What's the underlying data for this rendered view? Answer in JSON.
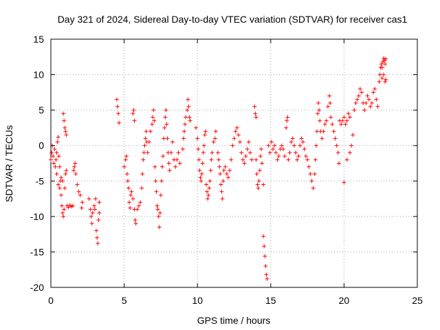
{
  "chart_data": {
    "type": "scatter",
    "title": "Day 321 of 2024, Sidereal Day-to-day VTEC variation (SDTVAR) for receiver cas1",
    "xlabel": "GPS time / hours",
    "ylabel": "SDTVAR / TECUs",
    "xlim": [
      0,
      25
    ],
    "ylim": [
      -20,
      15
    ],
    "xticks": [
      0,
      5,
      10,
      15,
      20,
      25
    ],
    "yticks": [
      -20,
      -15,
      -10,
      -5,
      0,
      5,
      10,
      15
    ],
    "xtick_labels": [
      "0",
      "5",
      "10",
      "15",
      "20",
      "25"
    ],
    "ytick_labels": [
      "-20",
      "-15",
      "-10",
      "-5",
      "0",
      "5",
      "10",
      "15"
    ],
    "grid": true,
    "marker": "+",
    "color": "#ff0000",
    "series": [
      {
        "name": "SDTVAR",
        "points": [
          [
            0.0,
            -2.0
          ],
          [
            0.05,
            -1.0
          ],
          [
            0.1,
            0.0
          ],
          [
            0.15,
            -1.5
          ],
          [
            0.2,
            -2.5
          ],
          [
            0.25,
            -0.5
          ],
          [
            0.3,
            -3.0
          ],
          [
            0.35,
            -2.0
          ],
          [
            0.4,
            -1.0
          ],
          [
            0.45,
            0.5
          ],
          [
            0.5,
            1.2
          ],
          [
            0.55,
            -1.5
          ],
          [
            0.6,
            -3.0
          ],
          [
            0.65,
            -5.0
          ],
          [
            0.7,
            -7.0
          ],
          [
            0.75,
            -8.5
          ],
          [
            0.8,
            -9.5
          ],
          [
            0.85,
            -10.0
          ],
          [
            0.9,
            -9.0
          ],
          [
            0.95,
            -6.0
          ],
          [
            1.0,
            -4.0
          ],
          [
            1.05,
            -3.5
          ],
          [
            0.85,
            4.5
          ],
          [
            0.9,
            3.5
          ],
          [
            0.95,
            2.5
          ],
          [
            1.0,
            2.0
          ],
          [
            1.05,
            1.5
          ],
          [
            0.4,
            -4.0
          ],
          [
            0.5,
            -5.5
          ],
          [
            0.6,
            -6.0
          ],
          [
            0.7,
            -4.5
          ],
          [
            0.8,
            -5.0
          ],
          [
            1.1,
            -8.5
          ],
          [
            1.2,
            -8.7
          ],
          [
            1.3,
            -8.4
          ],
          [
            1.4,
            -8.6
          ],
          [
            1.5,
            -8.5
          ],
          [
            1.55,
            -3.5
          ],
          [
            1.6,
            -3.0
          ],
          [
            1.65,
            -2.5
          ],
          [
            1.7,
            -4.0
          ],
          [
            1.8,
            -5.5
          ],
          [
            1.9,
            -6.5
          ],
          [
            2.0,
            -7.0
          ],
          [
            2.1,
            -8.8
          ],
          [
            2.15,
            -8.0
          ],
          [
            2.6,
            -7.5
          ],
          [
            2.7,
            -9.0
          ],
          [
            2.75,
            -10.0
          ],
          [
            2.8,
            -11.0
          ],
          [
            2.85,
            -9.5
          ],
          [
            2.95,
            -8.5
          ],
          [
            3.0,
            -9.0
          ],
          [
            3.05,
            -7.5
          ],
          [
            3.1,
            -12.0
          ],
          [
            3.15,
            -13.0
          ],
          [
            3.2,
            -13.8
          ],
          [
            3.25,
            -10.5
          ],
          [
            3.3,
            -9.5
          ],
          [
            3.3,
            -8.0
          ],
          [
            4.5,
            6.5
          ],
          [
            4.55,
            5.5
          ],
          [
            4.6,
            4.5
          ],
          [
            4.65,
            3.2
          ],
          [
            5.0,
            -3.0
          ],
          [
            5.1,
            -2.0
          ],
          [
            5.15,
            -1.5
          ],
          [
            5.2,
            -4.0
          ],
          [
            5.25,
            -5.0
          ],
          [
            5.3,
            -6.0
          ],
          [
            5.35,
            -8.0
          ],
          [
            5.4,
            -8.8
          ],
          [
            5.45,
            -7.0
          ],
          [
            5.5,
            -6.5
          ],
          [
            5.6,
            -7.5
          ],
          [
            5.7,
            -9.0
          ],
          [
            5.75,
            -10.5
          ],
          [
            5.8,
            -11.0
          ],
          [
            5.9,
            -9.0
          ],
          [
            6.0,
            -8.5
          ],
          [
            5.6,
            4.5
          ],
          [
            5.65,
            5.0
          ],
          [
            5.7,
            3.5
          ],
          [
            6.1,
            -8.0
          ],
          [
            6.2,
            -6.0
          ],
          [
            6.25,
            -4.0
          ],
          [
            6.3,
            -2.0
          ],
          [
            6.35,
            -1.0
          ],
          [
            6.4,
            0.0
          ],
          [
            6.45,
            1.0
          ],
          [
            6.5,
            2.0
          ],
          [
            6.55,
            0.5
          ],
          [
            6.6,
            -1.0
          ],
          [
            6.7,
            0.5
          ],
          [
            6.8,
            2.0
          ],
          [
            6.9,
            3.0
          ],
          [
            6.95,
            4.0
          ],
          [
            7.0,
            5.0
          ],
          [
            7.05,
            3.5
          ],
          [
            7.1,
            -3.0
          ],
          [
            7.15,
            -5.0
          ],
          [
            7.2,
            -6.5
          ],
          [
            7.25,
            -8.5
          ],
          [
            7.3,
            -9.0
          ],
          [
            7.35,
            -10.0
          ],
          [
            7.4,
            -11.5
          ],
          [
            7.45,
            -9.5
          ],
          [
            7.5,
            -7.0
          ],
          [
            7.55,
            -5.0
          ],
          [
            7.6,
            -3.0
          ],
          [
            7.65,
            -1.5
          ],
          [
            7.7,
            1.0
          ],
          [
            7.75,
            2.5
          ],
          [
            7.8,
            4.0
          ],
          [
            7.85,
            5.0
          ],
          [
            7.9,
            3.0
          ],
          [
            7.95,
            1.0
          ],
          [
            8.0,
            -1.0
          ],
          [
            8.05,
            -2.5
          ],
          [
            8.1,
            -3.5
          ],
          [
            8.2,
            -1.0
          ],
          [
            8.3,
            0.5
          ],
          [
            8.4,
            -2.0
          ],
          [
            8.5,
            -3.0
          ],
          [
            8.6,
            -2.0
          ],
          [
            8.7,
            -1.0
          ],
          [
            8.8,
            -2.5
          ],
          [
            9.0,
            -0.5
          ],
          [
            9.05,
            1.0
          ],
          [
            9.1,
            2.0
          ],
          [
            9.15,
            3.0
          ],
          [
            9.2,
            4.0
          ],
          [
            9.3,
            5.0
          ],
          [
            9.35,
            6.5
          ],
          [
            9.4,
            5.5
          ],
          [
            9.45,
            4.0
          ],
          [
            9.5,
            3.5
          ],
          [
            9.9,
            2.5
          ],
          [
            10.0,
            1.0
          ],
          [
            10.05,
            -0.5
          ],
          [
            10.1,
            -2.0
          ],
          [
            10.15,
            -3.5
          ],
          [
            10.2,
            -4.5
          ],
          [
            10.25,
            -5.0
          ],
          [
            10.3,
            -4.0
          ],
          [
            10.35,
            -2.5
          ],
          [
            10.4,
            -1.0
          ],
          [
            10.45,
            0.0
          ],
          [
            10.5,
            1.5
          ],
          [
            10.55,
            2.0
          ],
          [
            10.6,
            -5.5
          ],
          [
            10.65,
            -6.5
          ],
          [
            10.7,
            -7.5
          ],
          [
            10.75,
            -7.0
          ],
          [
            10.8,
            -6.0
          ],
          [
            10.85,
            -5.0
          ],
          [
            10.9,
            -3.5
          ],
          [
            10.95,
            -2.0
          ],
          [
            11.0,
            -1.0
          ],
          [
            11.1,
            0.5
          ],
          [
            11.2,
            1.0
          ],
          [
            11.25,
            2.0
          ],
          [
            11.4,
            -1.0
          ],
          [
            11.45,
            -2.0
          ],
          [
            11.5,
            -3.0
          ],
          [
            11.55,
            -4.0
          ],
          [
            11.6,
            -5.5
          ],
          [
            11.65,
            -6.5
          ],
          [
            11.7,
            -7.5
          ],
          [
            11.75,
            -5.0
          ],
          [
            11.8,
            -3.5
          ],
          [
            11.9,
            -3.0
          ],
          [
            12.0,
            -4.0
          ],
          [
            12.1,
            -4.5
          ],
          [
            12.2,
            -3.5
          ],
          [
            12.3,
            -2.0
          ],
          [
            12.4,
            0.0
          ],
          [
            12.5,
            1.0
          ],
          [
            12.6,
            2.0
          ],
          [
            12.7,
            2.5
          ],
          [
            12.8,
            1.5
          ],
          [
            12.9,
            0.5
          ],
          [
            13.0,
            -1.0
          ],
          [
            13.1,
            -2.0
          ],
          [
            13.2,
            -2.5
          ],
          [
            13.3,
            -1.5
          ],
          [
            13.4,
            -0.5
          ],
          [
            13.5,
            0.5
          ],
          [
            13.6,
            -1.0
          ],
          [
            13.7,
            -2.0
          ],
          [
            14.0,
            -2.0
          ],
          [
            14.05,
            -4.0
          ],
          [
            14.1,
            -5.5
          ],
          [
            14.15,
            -6.0
          ],
          [
            14.2,
            -5.0
          ],
          [
            14.25,
            -3.5
          ],
          [
            14.3,
            -1.5
          ],
          [
            14.35,
            -0.5
          ],
          [
            14.4,
            -2.5
          ],
          [
            14.5,
            -5.5
          ],
          [
            13.9,
            5.5
          ],
          [
            13.95,
            4.5
          ],
          [
            14.0,
            4.0
          ],
          [
            14.5,
            -12.8
          ],
          [
            14.55,
            -14.2
          ],
          [
            14.6,
            -15.6
          ],
          [
            14.65,
            -17.0
          ],
          [
            14.7,
            -18.2
          ],
          [
            14.75,
            -18.8
          ],
          [
            14.85,
            0.0
          ],
          [
            14.95,
            -1.0
          ],
          [
            15.05,
            0.5
          ],
          [
            15.15,
            -0.5
          ],
          [
            15.25,
            0.0
          ],
          [
            15.35,
            -1.0
          ],
          [
            15.45,
            -2.0
          ],
          [
            15.55,
            -1.5
          ],
          [
            15.65,
            -0.5
          ],
          [
            15.75,
            0.0
          ],
          [
            15.85,
            -0.5
          ],
          [
            15.95,
            -1.5
          ],
          [
            16.05,
            2.5
          ],
          [
            16.1,
            3.5
          ],
          [
            16.15,
            4.0
          ],
          [
            16.2,
            -2.0
          ],
          [
            16.3,
            -1.0
          ],
          [
            16.4,
            0.5
          ],
          [
            16.5,
            1.0
          ],
          [
            16.6,
            0.0
          ],
          [
            16.7,
            -1.0
          ],
          [
            16.8,
            -2.0
          ],
          [
            16.9,
            -1.5
          ],
          [
            17.0,
            0.0
          ],
          [
            17.1,
            1.0
          ],
          [
            17.2,
            0.5
          ],
          [
            17.3,
            -0.5
          ],
          [
            17.4,
            -1.5
          ],
          [
            17.5,
            -2.0
          ],
          [
            17.6,
            -3.0
          ],
          [
            17.7,
            -4.0
          ],
          [
            17.8,
            -5.0
          ],
          [
            17.9,
            -6.0
          ],
          [
            18.0,
            -4.0
          ],
          [
            18.05,
            -2.0
          ],
          [
            18.1,
            0.0
          ],
          [
            18.15,
            2.0
          ],
          [
            18.2,
            4.5
          ],
          [
            18.25,
            6.0
          ],
          [
            18.3,
            5.0
          ],
          [
            18.35,
            3.5
          ],
          [
            18.4,
            2.0
          ],
          [
            18.5,
            1.0
          ],
          [
            18.6,
            2.0
          ],
          [
            18.7,
            3.0
          ],
          [
            18.8,
            3.5
          ],
          [
            18.9,
            5.5
          ],
          [
            19.0,
            7.0
          ],
          [
            19.05,
            6.0
          ],
          [
            19.1,
            4.0
          ],
          [
            19.2,
            3.0
          ],
          [
            19.3,
            2.0
          ],
          [
            19.4,
            1.0
          ],
          [
            19.5,
            0.0
          ],
          [
            19.6,
            -1.0
          ],
          [
            19.65,
            -2.5
          ],
          [
            19.7,
            3.5
          ],
          [
            19.8,
            3.0
          ],
          [
            19.9,
            3.5
          ],
          [
            20.0,
            4.0
          ],
          [
            20.1,
            3.0
          ],
          [
            20.2,
            3.5
          ],
          [
            20.3,
            4.5
          ],
          [
            20.4,
            4.0
          ],
          [
            20.0,
            -5.2
          ],
          [
            20.2,
            -2.0
          ],
          [
            20.4,
            -1.0
          ],
          [
            20.5,
            0.0
          ],
          [
            20.6,
            1.5
          ],
          [
            20.7,
            5.0
          ],
          [
            20.8,
            6.0
          ],
          [
            20.9,
            6.5
          ],
          [
            21.0,
            7.0
          ],
          [
            21.1,
            8.0
          ],
          [
            21.2,
            7.5
          ],
          [
            21.3,
            6.0
          ],
          [
            21.4,
            5.0
          ],
          [
            21.5,
            6.0
          ],
          [
            21.6,
            7.0
          ],
          [
            21.7,
            6.5
          ],
          [
            21.8,
            5.5
          ],
          [
            21.9,
            6.0
          ],
          [
            22.0,
            7.5
          ],
          [
            22.1,
            8.0
          ],
          [
            22.2,
            6.5
          ],
          [
            22.3,
            5.5
          ],
          [
            22.4,
            9.0
          ],
          [
            22.45,
            10.0
          ],
          [
            22.5,
            11.0
          ],
          [
            22.55,
            11.5
          ],
          [
            22.6,
            11.0
          ],
          [
            22.65,
            11.8
          ],
          [
            22.7,
            12.3
          ],
          [
            22.75,
            12.0
          ],
          [
            22.8,
            11.5
          ],
          [
            22.85,
            12.2
          ],
          [
            22.6,
            9.5
          ],
          [
            22.7,
            10.0
          ],
          [
            22.8,
            9.0
          ],
          [
            22.85,
            9.3
          ]
        ]
      }
    ]
  }
}
